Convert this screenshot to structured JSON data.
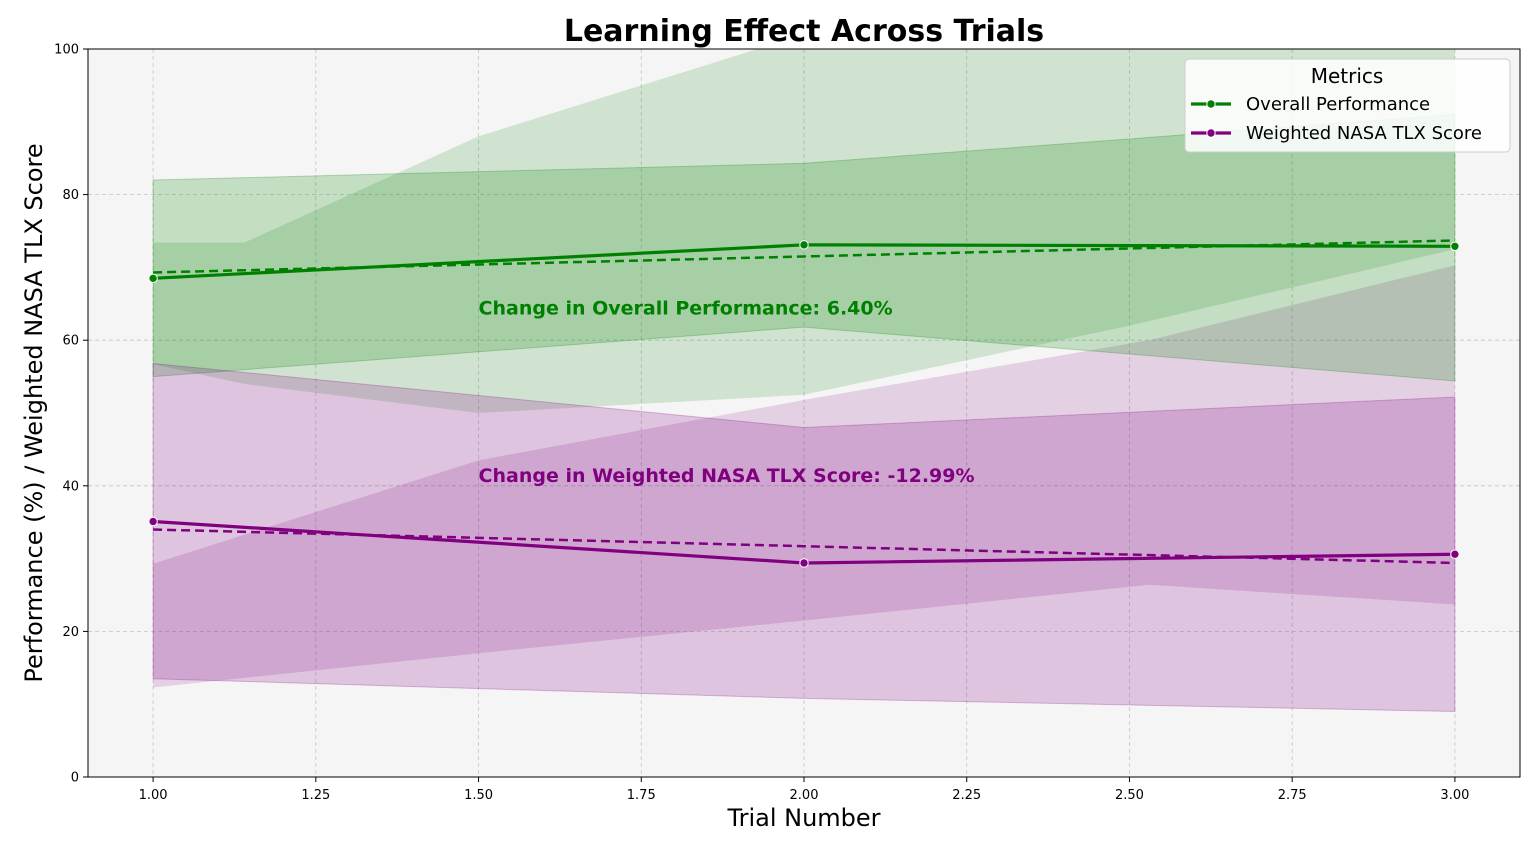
{
  "chart_data": {
    "type": "line",
    "title": "Learning Effect Across Trials",
    "xlabel": "Trial Number",
    "ylabel": "Performance (%) / Weighted NASA TLX Score",
    "xlim": [
      0.9,
      3.1
    ],
    "ylim": [
      0,
      100
    ],
    "xticks": [
      1.0,
      1.25,
      1.5,
      1.75,
      2.0,
      2.25,
      2.5,
      2.75,
      3.0
    ],
    "xtick_labels": [
      "1.00",
      "1.25",
      "1.50",
      "1.75",
      "2.00",
      "2.25",
      "2.50",
      "2.75",
      "3.00"
    ],
    "yticks": [
      0,
      20,
      40,
      60,
      80,
      100
    ],
    "ytick_labels": [
      "0",
      "20",
      "40",
      "60",
      "80",
      "100"
    ],
    "grid": true,
    "legend": {
      "title": "Metrics",
      "placement": "top-right"
    },
    "x": [
      1.0,
      2.0,
      3.0
    ],
    "series": [
      {
        "name": "Overall Performance",
        "color": "#008000",
        "values": [
          68.5,
          73.1,
          72.9
        ],
        "trend": [
          [
            1.0,
            69.3
          ],
          [
            2.0,
            71.5
          ],
          [
            3.0,
            73.7
          ]
        ],
        "band": {
          "x": [
            1.0,
            2.0,
            3.0
          ],
          "lower": [
            55.0,
            61.8,
            54.4
          ],
          "upper": [
            82.0,
            84.3,
            91.0
          ]
        },
        "trend_band": {
          "x": [
            1.0,
            1.14,
            1.5,
            2.0,
            2.5,
            3.0
          ],
          "lower": [
            56.7,
            54.0,
            50.0,
            52.5,
            62.0,
            72.5
          ],
          "upper": [
            73.4,
            73.4,
            88.0,
            102.0,
            118.0,
            135.0
          ]
        }
      },
      {
        "name": "Weighted NASA TLX Score",
        "color": "#800080",
        "values": [
          35.1,
          29.4,
          30.6
        ],
        "trend": [
          [
            1.0,
            34.0
          ],
          [
            2.0,
            31.7
          ],
          [
            3.0,
            29.4
          ]
        ],
        "band": {
          "x": [
            1.0,
            2.0,
            3.0
          ],
          "lower": [
            13.5,
            10.8,
            9.0
          ],
          "upper": [
            56.8,
            48.0,
            52.2
          ]
        },
        "trend_band": {
          "x": [
            1.0,
            1.5,
            2.0,
            2.53,
            3.0
          ],
          "lower": [
            12.3,
            17.0,
            21.5,
            26.4,
            23.7
          ],
          "upper": [
            29.3,
            43.5,
            51.8,
            60.0,
            70.3
          ]
        }
      }
    ],
    "annotations": [
      {
        "text": "Change in Overall Performance: 6.40%",
        "x": 1.5,
        "y": 63.5,
        "color": "#008000"
      },
      {
        "text": "Change in Weighted NASA TLX Score: -12.99%",
        "x": 1.5,
        "y": 40.5,
        "color": "#800080"
      }
    ]
  }
}
